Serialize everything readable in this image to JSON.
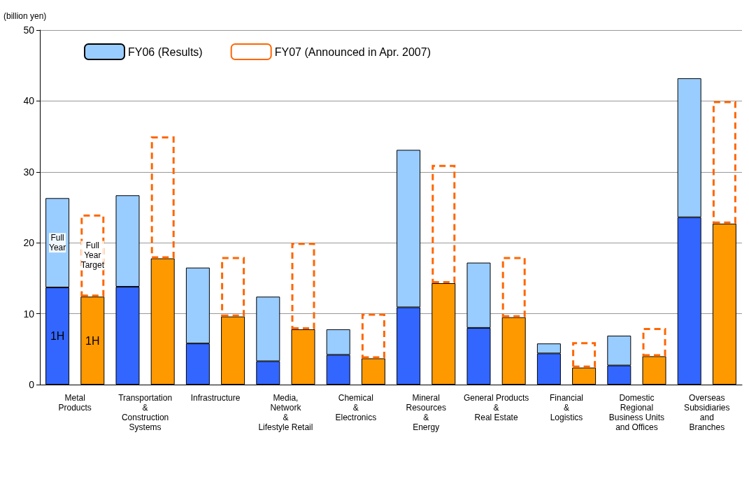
{
  "chart_data": {
    "type": "bar",
    "ylabel": "(billion yen)",
    "categories": [
      "Metal\nProducts",
      null,
      "Transportation\n&\nConstruction\nSystems",
      null,
      "Infrastructure",
      null,
      "Media,\nNetwork\n&\nLifestyle Retail",
      null,
      "Chemical\n&\nElectronics",
      null,
      "Mineral\nResources\n&\nEnergy",
      null,
      "General Products\n&\nReal Estate",
      null,
      "Financial\n&\nLogistics",
      null,
      "Domestic\nRegional\nBusiness Units\nand Offices",
      null,
      "Overseas\nSubsidiaries\nand\nBranches",
      null
    ],
    "stacked": true,
    "series": [
      {
        "color": "#3366ff",
        "values": [
          13.7,
          null,
          13.8,
          null,
          5.8,
          null,
          3.3,
          null,
          4.2,
          null,
          10.9,
          null,
          8.0,
          null,
          4.4,
          null,
          2.7,
          null,
          23.6,
          null
        ]
      },
      {
        "name": "FY06 (Results)",
        "color": "#99ccff",
        "values": [
          12.6,
          null,
          12.9,
          null,
          10.7,
          null,
          9.1,
          null,
          3.6,
          null,
          22.2,
          null,
          9.2,
          null,
          1.4,
          null,
          4.2,
          null,
          19.6,
          null
        ]
      },
      {
        "color": "#ff9900",
        "values": [
          null,
          12.4,
          null,
          17.8,
          null,
          9.6,
          null,
          7.8,
          null,
          3.7,
          null,
          14.3,
          null,
          9.5,
          null,
          2.4,
          null,
          4.0,
          null,
          22.7
        ]
      },
      {
        "name": "FY07 (Announced in Apr. 2007)",
        "color": "#ff6600",
        "line_style": "dashed",
        "values": [
          null,
          11.6,
          null,
          17.2,
          null,
          8.4,
          null,
          12.2,
          null,
          6.3,
          null,
          16.7,
          null,
          8.5,
          null,
          3.6,
          null,
          4.0,
          null,
          17.3
        ]
      }
    ],
    "ylim": [
      0,
      50
    ],
    "yticks": [
      0,
      10,
      20,
      30,
      40,
      50
    ],
    "grid": "y",
    "legend": "top left",
    "annotations": [
      "Full\nYear",
      "Full\nYear\nTarget",
      "1H",
      "1H"
    ]
  }
}
